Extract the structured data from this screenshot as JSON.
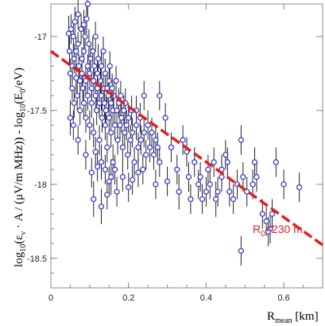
{
  "chart_data": {
    "type": "scatter",
    "title": "",
    "xlabel": {
      "base": "R",
      "sub": "mean",
      "unit": " [km]"
    },
    "ylabel": {
      "part1": "log",
      "sub1": "10",
      "part2": "(ε",
      "sub2": "ν",
      "part3": " · A / (μV/m MHz)) - log",
      "sub3": "10",
      "part4": "(E",
      "sub4": "0",
      "part5": "/eV)"
    },
    "xlim": [
      0,
      0.7
    ],
    "ylim": [
      -18.7,
      -16.78
    ],
    "x_ticks": [
      0,
      0.2,
      0.4,
      0.6
    ],
    "x_tick_labels": [
      "0",
      "0.2",
      "0.4",
      "0.6"
    ],
    "y_ticks": [
      -17,
      -17.5,
      -18,
      -18.5
    ],
    "y_tick_labels": [
      "-17",
      "-17.5",
      "-18",
      "-18.5"
    ],
    "grid": false,
    "colors": {
      "points": "#3a3ad0",
      "errorbars": "#222222",
      "fit": "#e02020",
      "axes": "#888888"
    },
    "fit_line": {
      "x": [
        0,
        0.7
      ],
      "y": [
        -17.1,
        -18.41
      ],
      "style": "dashed"
    },
    "annotation": {
      "base": "R",
      "sub": "0",
      "rest": "=230 m",
      "x": 0.52,
      "y": -18.33
    },
    "series": [
      {
        "points": [
          [
            0.046,
            -16.98,
            0.12
          ],
          [
            0.048,
            -17.1,
            0.1
          ],
          [
            0.05,
            -17.25,
            0.1
          ],
          [
            0.05,
            -17.55,
            0.12
          ],
          [
            0.052,
            -16.95,
            0.1
          ],
          [
            0.055,
            -17.2,
            0.1
          ],
          [
            0.055,
            -17.35,
            0.08
          ],
          [
            0.058,
            -17.0,
            0.1
          ],
          [
            0.058,
            -17.6,
            0.1
          ],
          [
            0.06,
            -17.15,
            0.1
          ],
          [
            0.06,
            -17.45,
            0.1
          ],
          [
            0.062,
            -16.9,
            0.1
          ],
          [
            0.065,
            -17.28,
            0.1
          ],
          [
            0.065,
            -17.1,
            0.1
          ],
          [
            0.068,
            -17.4,
            0.1
          ],
          [
            0.07,
            -17.7,
            0.1
          ],
          [
            0.07,
            -17.05,
            0.08
          ],
          [
            0.072,
            -17.2,
            0.08
          ],
          [
            0.075,
            -17.3,
            0.1
          ],
          [
            0.075,
            -17.5,
            0.1
          ],
          [
            0.078,
            -16.95,
            0.1
          ],
          [
            0.08,
            -17.15,
            0.08
          ],
          [
            0.08,
            -17.25,
            0.1
          ],
          [
            0.082,
            -17.35,
            0.1
          ],
          [
            0.085,
            -17.45,
            0.1
          ],
          [
            0.085,
            -17.1,
            0.08
          ],
          [
            0.088,
            -17.0,
            0.1
          ],
          [
            0.09,
            -17.3,
            0.1
          ],
          [
            0.09,
            -17.55,
            0.1
          ],
          [
            0.092,
            -16.88,
            0.1
          ],
          [
            0.095,
            -17.2,
            0.08
          ],
          [
            0.095,
            -17.4,
            0.1
          ],
          [
            0.098,
            -17.05,
            0.1
          ],
          [
            0.1,
            -17.25,
            0.08
          ],
          [
            0.1,
            -17.6,
            0.1
          ],
          [
            0.102,
            -17.15,
            0.1
          ],
          [
            0.105,
            -17.35,
            0.1
          ],
          [
            0.105,
            -17.45,
            0.1
          ],
          [
            0.108,
            -17.1,
            0.1
          ],
          [
            0.11,
            -17.3,
            0.08
          ],
          [
            0.11,
            -17.65,
            0.1
          ],
          [
            0.112,
            -17.2,
            0.1
          ],
          [
            0.115,
            -17.4,
            0.1
          ],
          [
            0.115,
            -17.0,
            0.1
          ],
          [
            0.118,
            -17.5,
            0.1
          ],
          [
            0.12,
            -17.25,
            0.08
          ],
          [
            0.12,
            -17.35,
            0.1
          ],
          [
            0.122,
            -17.15,
            0.1
          ],
          [
            0.125,
            -17.45,
            0.1
          ],
          [
            0.125,
            -17.7,
            0.1
          ],
          [
            0.128,
            -17.3,
            0.1
          ],
          [
            0.13,
            -17.2,
            0.1
          ],
          [
            0.13,
            -17.4,
            0.1
          ],
          [
            0.132,
            -17.55,
            0.1
          ],
          [
            0.135,
            -17.35,
            0.1
          ],
          [
            0.135,
            -17.1,
            0.1
          ],
          [
            0.138,
            -17.45,
            0.1
          ],
          [
            0.14,
            -17.25,
            0.1
          ],
          [
            0.14,
            -17.6,
            0.1
          ],
          [
            0.142,
            -17.5,
            0.1
          ],
          [
            0.145,
            -17.35,
            0.1
          ],
          [
            0.145,
            -17.75,
            0.1
          ],
          [
            0.148,
            -17.4,
            0.1
          ],
          [
            0.15,
            -17.3,
            0.1
          ],
          [
            0.15,
            -17.55,
            0.1
          ],
          [
            0.152,
            -17.2,
            0.1
          ],
          [
            0.155,
            -17.45,
            0.1
          ],
          [
            0.155,
            -17.65,
            0.1
          ],
          [
            0.158,
            -17.35,
            0.1
          ],
          [
            0.16,
            -17.5,
            0.1
          ],
          [
            0.16,
            -17.85,
            0.12
          ],
          [
            0.162,
            -17.4,
            0.1
          ],
          [
            0.165,
            -17.6,
            0.1
          ],
          [
            0.168,
            -17.3,
            0.1
          ],
          [
            0.17,
            -17.5,
            0.1
          ],
          [
            0.172,
            -17.7,
            0.1
          ],
          [
            0.175,
            -17.45,
            0.1
          ],
          [
            0.178,
            -17.6,
            0.1
          ],
          [
            0.18,
            -17.4,
            0.1
          ],
          [
            0.182,
            -17.55,
            0.1
          ],
          [
            0.185,
            -17.75,
            0.1
          ],
          [
            0.188,
            -17.5,
            0.1
          ],
          [
            0.19,
            -17.65,
            0.1
          ],
          [
            0.192,
            -17.45,
            0.1
          ],
          [
            0.195,
            -17.6,
            0.1
          ],
          [
            0.198,
            -17.8,
            0.1
          ],
          [
            0.2,
            -17.55,
            0.1
          ],
          [
            0.205,
            -17.7,
            0.1
          ],
          [
            0.208,
            -17.5,
            0.1
          ],
          [
            0.21,
            -17.65,
            0.1
          ],
          [
            0.215,
            -17.85,
            0.1
          ],
          [
            0.22,
            -17.6,
            0.1
          ],
          [
            0.225,
            -17.75,
            0.1
          ],
          [
            0.23,
            -17.55,
            0.1
          ],
          [
            0.232,
            -17.7,
            0.1
          ],
          [
            0.237,
            -17.9,
            0.1
          ],
          [
            0.24,
            -17.65,
            0.1
          ],
          [
            0.245,
            -17.8,
            0.1
          ],
          [
            0.25,
            -17.6,
            0.1
          ],
          [
            0.255,
            -17.75,
            0.1
          ],
          [
            0.26,
            -17.65,
            0.1
          ],
          [
            0.265,
            -17.8,
            0.1
          ],
          [
            0.27,
            -17.7,
            0.1
          ],
          [
            0.275,
            -17.75,
            0.1
          ],
          [
            0.28,
            -17.85,
            0.1
          ],
          [
            0.07,
            -16.85,
            0.1
          ],
          [
            0.085,
            -16.92,
            0.1
          ],
          [
            0.095,
            -16.78,
            0.08
          ],
          [
            0.115,
            -17.78,
            0.1
          ],
          [
            0.13,
            -17.85,
            0.12
          ],
          [
            0.14,
            -17.9,
            0.1
          ],
          [
            0.155,
            -17.95,
            0.12
          ],
          [
            0.165,
            -17.9,
            0.1
          ],
          [
            0.12,
            -17.88,
            0.1
          ],
          [
            0.105,
            -17.92,
            0.1
          ],
          [
            0.09,
            -17.8,
            0.1
          ],
          [
            0.11,
            -18.1,
            0.12
          ],
          [
            0.13,
            -18.15,
            0.12
          ],
          [
            0.15,
            -17.98,
            0.1
          ],
          [
            0.17,
            -18.05,
            0.1
          ],
          [
            0.185,
            -17.95,
            0.1
          ],
          [
            0.2,
            -18.02,
            0.1
          ],
          [
            0.21,
            -17.97,
            0.1
          ],
          [
            0.225,
            -17.92,
            0.1
          ],
          [
            0.145,
            -18.07,
            0.1
          ],
          [
            0.28,
            -17.4,
            0.1
          ],
          [
            0.295,
            -17.55,
            0.1
          ],
          [
            0.31,
            -17.75,
            0.1
          ],
          [
            0.325,
            -17.9,
            0.1
          ],
          [
            0.33,
            -18.05,
            0.12
          ],
          [
            0.355,
            -17.95,
            0.1
          ],
          [
            0.37,
            -17.85,
            0.1
          ],
          [
            0.38,
            -18.0,
            0.1
          ],
          [
            0.385,
            -17.95,
            0.1
          ],
          [
            0.39,
            -18.1,
            0.1
          ],
          [
            0.4,
            -18.05,
            0.1
          ],
          [
            0.405,
            -17.9,
            0.1
          ],
          [
            0.41,
            -18.0,
            0.1
          ],
          [
            0.42,
            -17.85,
            0.1
          ],
          [
            0.425,
            -18.1,
            0.12
          ],
          [
            0.43,
            -18.05,
            0.1
          ],
          [
            0.44,
            -17.9,
            0.1
          ],
          [
            0.45,
            -17.8,
            0.1
          ],
          [
            0.455,
            -17.85,
            0.1
          ],
          [
            0.46,
            -18.05,
            0.1
          ],
          [
            0.47,
            -18.1,
            0.1
          ],
          [
            0.48,
            -18.0,
            0.1
          ],
          [
            0.49,
            -17.7,
            0.1
          ],
          [
            0.495,
            -17.95,
            0.1
          ],
          [
            0.505,
            -18.05,
            0.1
          ],
          [
            0.52,
            -18.0,
            0.1
          ],
          [
            0.525,
            -17.85,
            0.1
          ],
          [
            0.53,
            -17.95,
            0.1
          ],
          [
            0.545,
            -18.2,
            0.1
          ],
          [
            0.555,
            -18.25,
            0.1
          ],
          [
            0.565,
            -18.3,
            0.1
          ],
          [
            0.57,
            -18.2,
            0.1
          ],
          [
            0.58,
            -17.85,
            0.1
          ],
          [
            0.6,
            -18.0,
            0.1
          ],
          [
            0.64,
            -18.02,
            0.1
          ],
          [
            0.49,
            -18.45,
            0.1
          ],
          [
            0.56,
            -18.32,
            0.1
          ],
          [
            0.34,
            -17.7,
            0.1
          ],
          [
            0.36,
            -18.1,
            0.1
          ],
          [
            0.44,
            -17.95,
            0.1
          ],
          [
            0.24,
            -17.4,
            0.1
          ],
          [
            0.22,
            -17.5,
            0.1
          ],
          [
            0.3,
            -17.98,
            0.1
          ],
          [
            0.27,
            -18.0,
            0.1
          ],
          [
            0.35,
            -17.78,
            0.1
          ]
        ]
      }
    ]
  }
}
